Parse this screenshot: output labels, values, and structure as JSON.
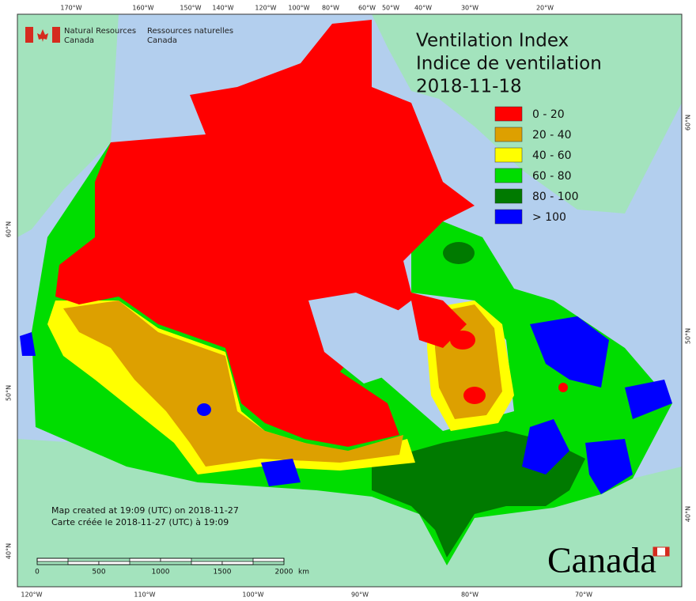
{
  "header": {
    "agency_en": [
      "Natural Resources",
      "Canada"
    ],
    "agency_fr": [
      "Ressources naturelles",
      "Canada"
    ]
  },
  "title": {
    "line1": "Ventilation Index",
    "line2": "Indice de ventilation",
    "date": "2018-11-18"
  },
  "legend": [
    {
      "label": "0 - 20",
      "color": "#ff0000"
    },
    {
      "label": "20 - 40",
      "color": "#dda000"
    },
    {
      "label": "40 - 60",
      "color": "#ffff00"
    },
    {
      "label": "60 - 80",
      "color": "#00dd00"
    },
    {
      "label": "80 - 100",
      "color": "#007a00"
    },
    {
      "label": "> 100",
      "color": "#0000ff"
    }
  ],
  "graticule": {
    "top": [
      "170°W",
      "160°W",
      "150°W",
      "140°W",
      "120°W",
      "100°W",
      "80°W",
      "60°W",
      "50°W",
      "40°W",
      "30°W",
      "20°W"
    ],
    "bottom": [
      "120°W",
      "110°W",
      "100°W",
      "90°W",
      "80°W",
      "70°W"
    ],
    "left": [
      "60°N",
      "50°N",
      "40°N"
    ],
    "right": [
      "60°N",
      "50°N",
      "40°N"
    ]
  },
  "scale_bar": {
    "ticks": [
      "0",
      "500",
      "1000",
      "1500",
      "2000"
    ],
    "unit": "km"
  },
  "footer": {
    "created_en": "Map created at 19:09 (UTC) on 2018-11-27",
    "created_fr": "Carte créée le 2018-11-27 (UTC) à 19:09"
  },
  "wordmark": "Canada"
}
